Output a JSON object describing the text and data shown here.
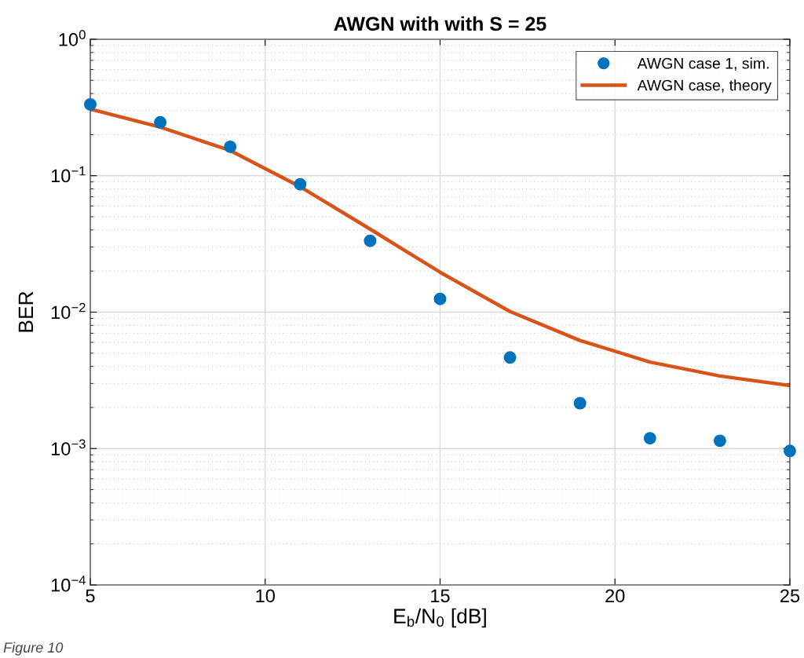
{
  "chart_data": {
    "type": "scatter",
    "title": "AWGN with with S = 25",
    "xlabel": "E$_{b}$/N$_{0}$ [dB]",
    "ylabel": "BER",
    "x": [
      5,
      7,
      9,
      11,
      13,
      15,
      17,
      19,
      21,
      23,
      25
    ],
    "series": [
      {
        "name": "AWGN case 1, sim.",
        "color": "#0072bd",
        "marker": "circle",
        "values": [
          0.333,
          0.246,
          0.163,
          0.0865,
          0.0333,
          0.0125,
          0.00465,
          0.00215,
          0.00119,
          0.00114,
          0.00096
        ]
      },
      {
        "name": "AWGN case, theory",
        "color": "#d95319",
        "type": "line",
        "marker": "none",
        "line_style": "solid",
        "values": [
          0.308,
          0.227,
          0.153,
          0.083,
          0.0406,
          0.0196,
          0.0101,
          0.0062,
          0.0043,
          0.0034,
          0.0029
        ]
      }
    ],
    "log": "y",
    "xlim": [
      5,
      25
    ],
    "xticks": [
      5,
      10,
      15,
      20,
      25
    ],
    "ylim": [
      0.0001,
      1
    ],
    "yticks": [
      {
        "value": 0.0001,
        "label": "10$^{−4}$"
      },
      {
        "value": 0.001,
        "label": "10$^{−3}$"
      },
      {
        "value": 0.01,
        "label": "10$^{−2}$"
      },
      {
        "value": 0.1,
        "label": "10$^{−1}$"
      },
      {
        "value": 1,
        "label": "10$^{0}$"
      }
    ],
    "grid": true,
    "legend": "top right",
    "annotations": [
      "Figure 10"
    ]
  }
}
